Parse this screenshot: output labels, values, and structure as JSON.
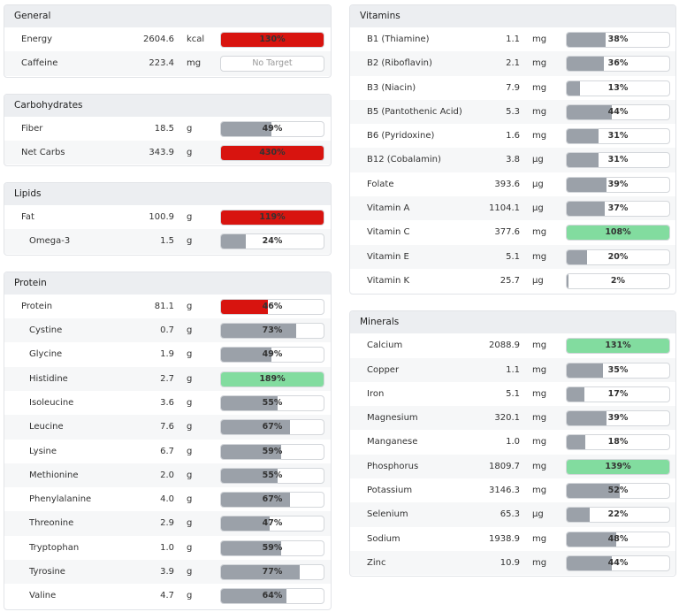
{
  "bar_color": "#9ba1a9",
  "columns": [
    {
      "sections": [
        {
          "title": "General",
          "rows": [
            {
              "name": "Energy",
              "amount": "2604.6",
              "unit": "kcal",
              "pct": 130,
              "pct_label": "130%",
              "color": "#d8140f"
            },
            {
              "name": "Caffeine",
              "amount": "223.4",
              "unit": "mg",
              "target_text": "No Target"
            }
          ]
        },
        {
          "title": "Carbohydrates",
          "rows": [
            {
              "name": "Fiber",
              "amount": "18.5",
              "unit": "g",
              "pct": 49,
              "pct_label": "49%"
            },
            {
              "name": "Net Carbs",
              "amount": "343.9",
              "unit": "g",
              "pct": 430,
              "pct_label": "430%",
              "color": "#d8140f"
            }
          ]
        },
        {
          "title": "Lipids",
          "rows": [
            {
              "name": "Fat",
              "amount": "100.9",
              "unit": "g",
              "pct": 119,
              "pct_label": "119%",
              "color": "#d8140f"
            },
            {
              "name": "Omega-3",
              "amount": "1.5",
              "unit": "g",
              "pct": 24,
              "pct_label": "24%",
              "sub": true
            }
          ]
        },
        {
          "title": "Protein",
          "rows": [
            {
              "name": "Protein",
              "amount": "81.1",
              "unit": "g",
              "pct": 46,
              "pct_label": "46%",
              "color": "#d8140f"
            },
            {
              "name": "Cystine",
              "amount": "0.7",
              "unit": "g",
              "pct": 73,
              "pct_label": "73%",
              "sub": true
            },
            {
              "name": "Glycine",
              "amount": "1.9",
              "unit": "g",
              "pct": 49,
              "pct_label": "49%",
              "sub": true
            },
            {
              "name": "Histidine",
              "amount": "2.7",
              "unit": "g",
              "pct": 189,
              "pct_label": "189%",
              "sub": true,
              "color": "#82dc9f"
            },
            {
              "name": "Isoleucine",
              "amount": "3.6",
              "unit": "g",
              "pct": 55,
              "pct_label": "55%",
              "sub": true
            },
            {
              "name": "Leucine",
              "amount": "7.6",
              "unit": "g",
              "pct": 67,
              "pct_label": "67%",
              "sub": true
            },
            {
              "name": "Lysine",
              "amount": "6.7",
              "unit": "g",
              "pct": 59,
              "pct_label": "59%",
              "sub": true
            },
            {
              "name": "Methionine",
              "amount": "2.0",
              "unit": "g",
              "pct": 55,
              "pct_label": "55%",
              "sub": true
            },
            {
              "name": "Phenylalanine",
              "amount": "4.0",
              "unit": "g",
              "pct": 67,
              "pct_label": "67%",
              "sub": true
            },
            {
              "name": "Threonine",
              "amount": "2.9",
              "unit": "g",
              "pct": 47,
              "pct_label": "47%",
              "sub": true
            },
            {
              "name": "Tryptophan",
              "amount": "1.0",
              "unit": "g",
              "pct": 59,
              "pct_label": "59%",
              "sub": true
            },
            {
              "name": "Tyrosine",
              "amount": "3.9",
              "unit": "g",
              "pct": 77,
              "pct_label": "77%",
              "sub": true
            },
            {
              "name": "Valine",
              "amount": "4.7",
              "unit": "g",
              "pct": 64,
              "pct_label": "64%",
              "sub": true
            }
          ]
        }
      ]
    },
    {
      "sections": [
        {
          "title": "Vitamins",
          "rows": [
            {
              "name": "B1 (Thiamine)",
              "amount": "1.1",
              "unit": "mg",
              "pct": 38,
              "pct_label": "38%"
            },
            {
              "name": "B2 (Riboflavin)",
              "amount": "2.1",
              "unit": "mg",
              "pct": 36,
              "pct_label": "36%"
            },
            {
              "name": "B3 (Niacin)",
              "amount": "7.9",
              "unit": "mg",
              "pct": 13,
              "pct_label": "13%"
            },
            {
              "name": "B5 (Pantothenic Acid)",
              "amount": "5.3",
              "unit": "mg",
              "pct": 44,
              "pct_label": "44%"
            },
            {
              "name": "B6 (Pyridoxine)",
              "amount": "1.6",
              "unit": "mg",
              "pct": 31,
              "pct_label": "31%"
            },
            {
              "name": "B12 (Cobalamin)",
              "amount": "3.8",
              "unit": "µg",
              "pct": 31,
              "pct_label": "31%"
            },
            {
              "name": "Folate",
              "amount": "393.6",
              "unit": "µg",
              "pct": 39,
              "pct_label": "39%"
            },
            {
              "name": "Vitamin A",
              "amount": "1104.1",
              "unit": "µg",
              "pct": 37,
              "pct_label": "37%"
            },
            {
              "name": "Vitamin C",
              "amount": "377.6",
              "unit": "mg",
              "pct": 108,
              "pct_label": "108%",
              "color": "#82dc9f"
            },
            {
              "name": "Vitamin E",
              "amount": "5.1",
              "unit": "mg",
              "pct": 20,
              "pct_label": "20%"
            },
            {
              "name": "Vitamin K",
              "amount": "25.7",
              "unit": "µg",
              "pct": 2,
              "pct_label": "2%"
            }
          ]
        },
        {
          "title": "Minerals",
          "rows": [
            {
              "name": "Calcium",
              "amount": "2088.9",
              "unit": "mg",
              "pct": 131,
              "pct_label": "131%",
              "color": "#82dc9f"
            },
            {
              "name": "Copper",
              "amount": "1.1",
              "unit": "mg",
              "pct": 35,
              "pct_label": "35%"
            },
            {
              "name": "Iron",
              "amount": "5.1",
              "unit": "mg",
              "pct": 17,
              "pct_label": "17%"
            },
            {
              "name": "Magnesium",
              "amount": "320.1",
              "unit": "mg",
              "pct": 39,
              "pct_label": "39%"
            },
            {
              "name": "Manganese",
              "amount": "1.0",
              "unit": "mg",
              "pct": 18,
              "pct_label": "18%"
            },
            {
              "name": "Phosphorus",
              "amount": "1809.7",
              "unit": "mg",
              "pct": 139,
              "pct_label": "139%",
              "color": "#82dc9f"
            },
            {
              "name": "Potassium",
              "amount": "3146.3",
              "unit": "mg",
              "pct": 52,
              "pct_label": "52%"
            },
            {
              "name": "Selenium",
              "amount": "65.3",
              "unit": "µg",
              "pct": 22,
              "pct_label": "22%"
            },
            {
              "name": "Sodium",
              "amount": "1938.9",
              "unit": "mg",
              "pct": 48,
              "pct_label": "48%"
            },
            {
              "name": "Zinc",
              "amount": "10.9",
              "unit": "mg",
              "pct": 44,
              "pct_label": "44%"
            }
          ]
        }
      ]
    }
  ]
}
